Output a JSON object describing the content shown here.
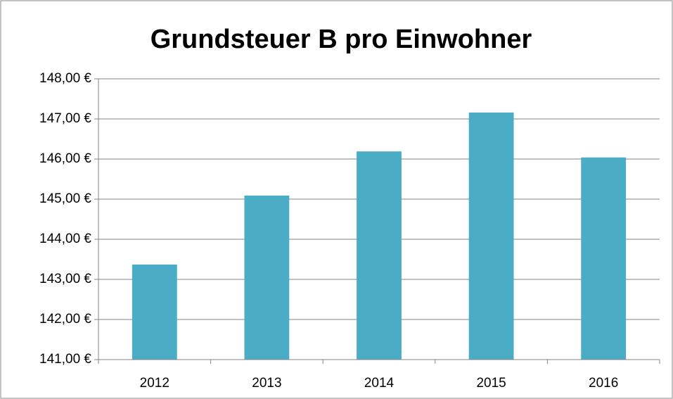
{
  "chart_data": {
    "type": "bar",
    "title": "Grundsteuer B pro Einwohner",
    "categories": [
      "2012",
      "2013",
      "2014",
      "2015",
      "2016"
    ],
    "values": [
      143.37,
      145.09,
      146.19,
      147.16,
      146.04
    ],
    "color": "#4bacc6",
    "ylim": [
      141,
      148
    ],
    "yticks": [
      {
        "value": 141,
        "label": "141,00 €"
      },
      {
        "value": 142,
        "label": "142,00 €"
      },
      {
        "value": 143,
        "label": "143,00 €"
      },
      {
        "value": 144,
        "label": "144,00 €"
      },
      {
        "value": 145,
        "label": "145,00 €"
      },
      {
        "value": 146,
        "label": "146,00 €"
      },
      {
        "value": 147,
        "label": "147,00 €"
      },
      {
        "value": 148,
        "label": "148,00 €"
      }
    ],
    "grid": true
  }
}
